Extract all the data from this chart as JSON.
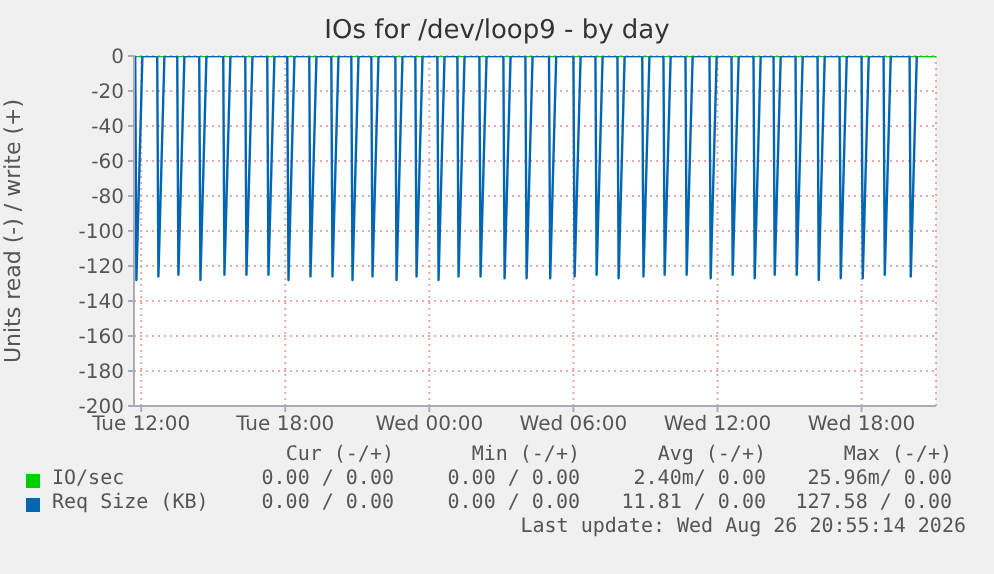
{
  "chart_data": {
    "type": "line",
    "title": "IOs for /dev/loop9 - by day",
    "ylabel": "Units read (-) / write (+)",
    "xlim": [
      "2026-08-25T11:42",
      "2026-08-26T21:06"
    ],
    "xticks": [
      {
        "value": "2026-08-25T12:00",
        "label": "Tue 12:00"
      },
      {
        "value": "2026-08-25T18:00",
        "label": "Tue 18:00"
      },
      {
        "value": "2026-08-26T00:00",
        "label": "Wed 00:00"
      },
      {
        "value": "2026-08-26T06:00",
        "label": "Wed 06:00"
      },
      {
        "value": "2026-08-26T12:00",
        "label": "Wed 12:00"
      },
      {
        "value": "2026-08-26T18:00",
        "label": "Wed 18:00"
      }
    ],
    "ylim": [
      -200,
      0
    ],
    "yticks": [
      0,
      -20,
      -40,
      -60,
      -80,
      -100,
      -120,
      -140,
      -160,
      -180,
      -200
    ],
    "grid": true,
    "legend": "bottom",
    "marker": "none",
    "line_style": "solid",
    "series": [
      {
        "name": "IO/sec",
        "color": "#00cc00",
        "x": [
          "2026-08-25T11:42",
          "2026-08-26T21:06"
        ],
        "values": [
          0,
          0
        ]
      },
      {
        "name": "Req Size (KB)",
        "color": "#0066b3",
        "x": [
          "2026-08-25T11:45",
          "2026-08-25T11:48",
          "2026-08-25T12:03",
          "2026-08-25T12:40",
          "2026-08-25T12:43",
          "2026-08-25T12:58",
          "2026-08-25T13:30",
          "2026-08-25T13:33",
          "2026-08-25T13:48",
          "2026-08-25T14:25",
          "2026-08-25T14:28",
          "2026-08-25T14:43",
          "2026-08-25T15:25",
          "2026-08-25T15:28",
          "2026-08-25T15:43",
          "2026-08-25T16:20",
          "2026-08-25T16:23",
          "2026-08-25T16:38",
          "2026-08-25T17:15",
          "2026-08-25T17:18",
          "2026-08-25T17:33",
          "2026-08-25T18:05",
          "2026-08-25T18:08",
          "2026-08-25T18:23",
          "2026-08-25T19:00",
          "2026-08-25T19:03",
          "2026-08-25T19:18",
          "2026-08-25T19:55",
          "2026-08-25T19:58",
          "2026-08-25T20:13",
          "2026-08-25T20:45",
          "2026-08-25T20:48",
          "2026-08-25T21:03",
          "2026-08-25T21:35",
          "2026-08-25T21:38",
          "2026-08-25T21:53",
          "2026-08-25T22:35",
          "2026-08-25T22:38",
          "2026-08-25T22:53",
          "2026-08-25T23:25",
          "2026-08-25T23:28",
          "2026-08-25T23:43",
          "2026-08-26T00:20",
          "2026-08-26T00:23",
          "2026-08-26T00:38",
          "2026-08-26T01:10",
          "2026-08-26T01:13",
          "2026-08-26T01:28",
          "2026-08-26T02:05",
          "2026-08-26T02:08",
          "2026-08-26T02:23",
          "2026-08-26T03:05",
          "2026-08-26T03:08",
          "2026-08-26T03:23",
          "2026-08-26T04:00",
          "2026-08-26T04:03",
          "2026-08-26T04:18",
          "2026-08-26T04:59",
          "2026-08-26T05:02",
          "2026-08-26T05:17",
          "2026-08-26T06:00",
          "2026-08-26T06:03",
          "2026-08-26T06:18",
          "2026-08-26T06:55",
          "2026-08-26T06:58",
          "2026-08-26T07:13",
          "2026-08-26T07:50",
          "2026-08-26T07:53",
          "2026-08-26T08:08",
          "2026-08-26T08:52",
          "2026-08-26T08:55",
          "2026-08-26T09:10",
          "2026-08-26T09:45",
          "2026-08-26T09:48",
          "2026-08-26T10:03",
          "2026-08-26T10:40",
          "2026-08-26T10:43",
          "2026-08-26T10:58",
          "2026-08-26T11:40",
          "2026-08-26T11:43",
          "2026-08-26T11:58",
          "2026-08-26T12:35",
          "2026-08-26T12:38",
          "2026-08-26T12:53",
          "2026-08-26T13:30",
          "2026-08-26T13:33",
          "2026-08-26T13:48",
          "2026-08-26T14:20",
          "2026-08-26T14:23",
          "2026-08-26T14:38",
          "2026-08-26T15:15",
          "2026-08-26T15:18",
          "2026-08-26T15:33",
          "2026-08-26T16:10",
          "2026-08-26T16:13",
          "2026-08-26T16:28",
          "2026-08-26T17:05",
          "2026-08-26T17:08",
          "2026-08-26T17:23",
          "2026-08-26T18:00",
          "2026-08-26T18:03",
          "2026-08-26T18:18",
          "2026-08-26T18:55",
          "2026-08-26T18:58",
          "2026-08-26T19:13",
          "2026-08-26T20:00",
          "2026-08-26T20:03",
          "2026-08-26T20:18"
        ],
        "values": [
          0,
          -128,
          0,
          0,
          -126,
          0,
          0,
          -125,
          0,
          0,
          -128,
          0,
          0,
          -125,
          0,
          0,
          -125,
          0,
          0,
          -125,
          0,
          0,
          -128,
          0,
          0,
          -126,
          0,
          0,
          -126,
          0,
          0,
          -128,
          0,
          0,
          -126,
          0,
          0,
          -128,
          0,
          0,
          -126,
          0,
          0,
          -128,
          0,
          0,
          -126,
          0,
          0,
          -126,
          0,
          0,
          -127,
          0,
          0,
          -127,
          0,
          0,
          -127,
          0,
          0,
          -126,
          0,
          0,
          -125,
          0,
          0,
          -127,
          0,
          0,
          -126,
          0,
          0,
          -125,
          0,
          0,
          -125,
          0,
          0,
          -127,
          0,
          0,
          -125,
          0,
          0,
          -127,
          0,
          0,
          -125,
          0,
          0,
          -125,
          0,
          0,
          -128,
          0,
          0,
          -127,
          0,
          0,
          -127,
          0,
          0,
          -125,
          0,
          0,
          -126,
          0
        ]
      }
    ],
    "annotations": [
      "Cur (-/+)",
      "Min (-/+)",
      "Avg (-/+)",
      "Max (-/+)",
      "0.00 / 0.00",
      "0.00 / 0.00",
      "2.40m/ 0.00",
      "25.96m/ 0.00",
      "0.00 / 0.00",
      "0.00 / 0.00",
      "11.81 / 0.00",
      "127.58 / 0.00",
      "Last update: Wed Aug 26 20:55:14 2026"
    ]
  }
}
